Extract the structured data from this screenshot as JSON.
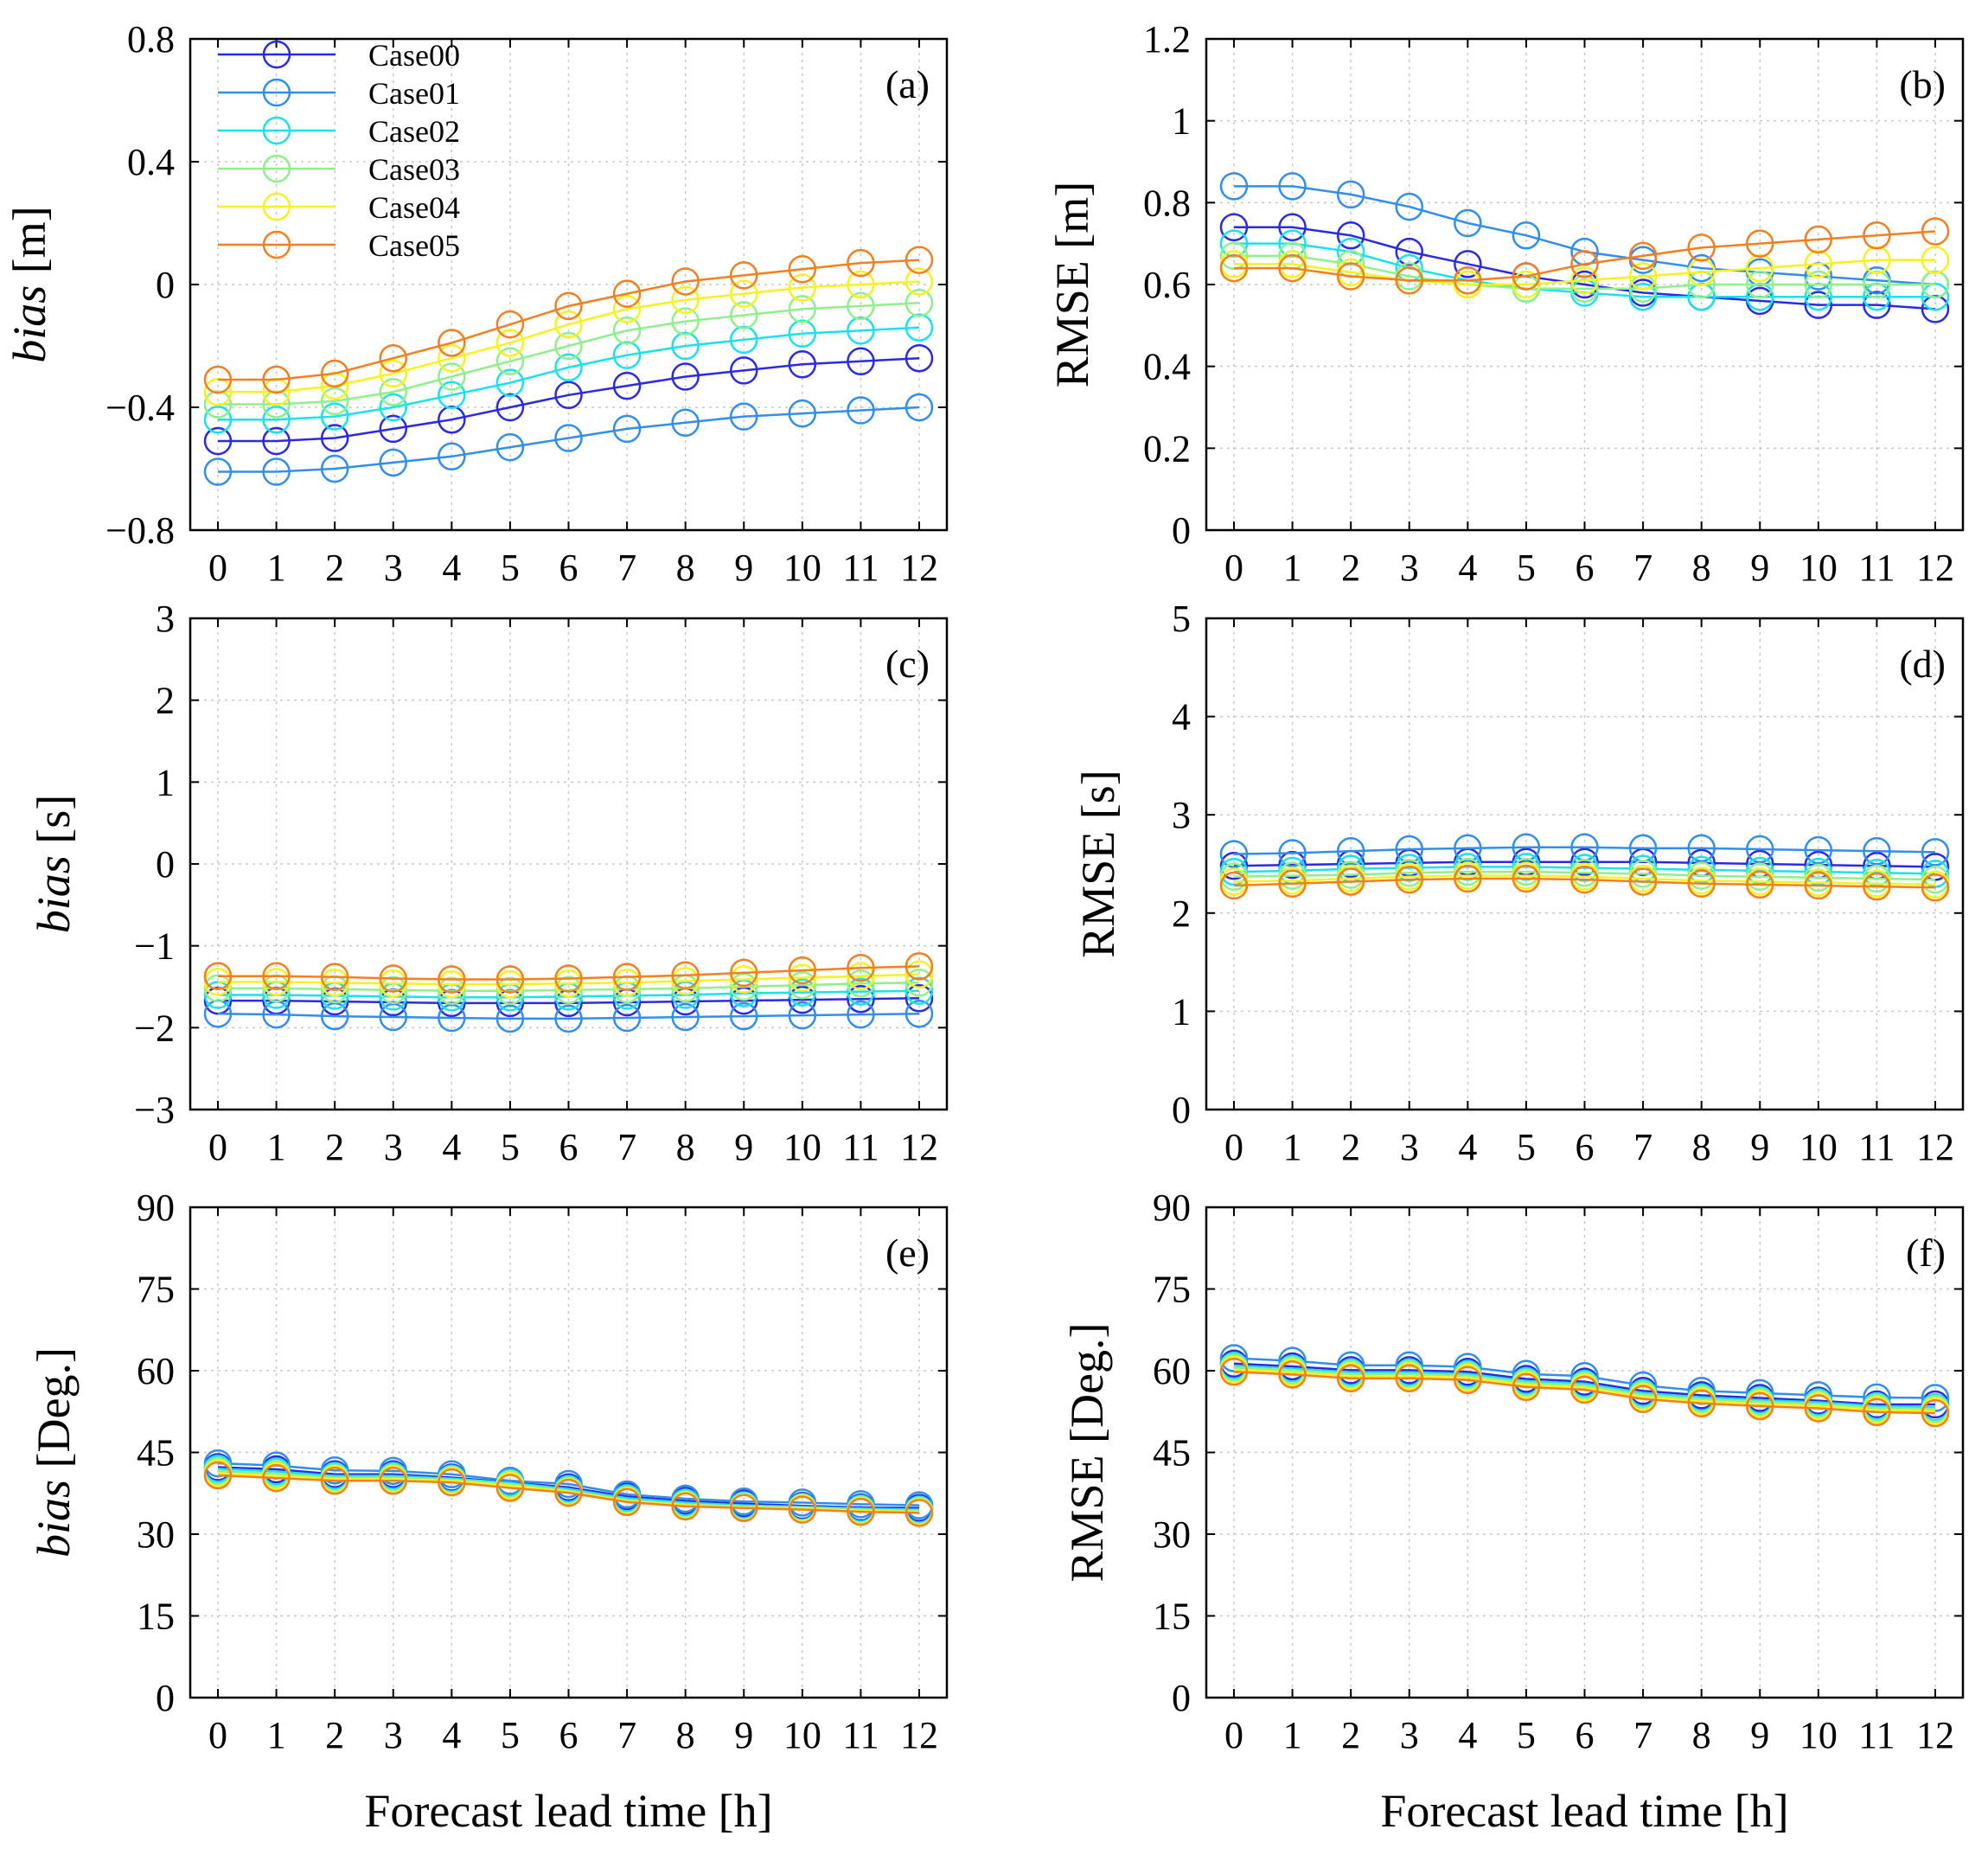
{
  "chart_data": [
    {
      "id": "a",
      "type": "line",
      "panel_label": "(a)",
      "ylabel_italic": "bias",
      "ylabel_rest": " [m]",
      "xlabel": "",
      "ylim": [
        -0.8,
        0.8
      ],
      "yticks": [
        -0.8,
        -0.4,
        0,
        0.4,
        0.8
      ],
      "ytick_labels": [
        "−0.8",
        "−0.4",
        "0",
        "0.4",
        "0.8"
      ],
      "x": [
        0,
        1,
        2,
        3,
        4,
        5,
        6,
        7,
        8,
        9,
        10,
        11,
        12
      ],
      "xtick_labels": [
        "0",
        "1",
        "2",
        "3",
        "4",
        "5",
        "6",
        "7",
        "8",
        "9",
        "10",
        "11",
        "12"
      ],
      "series": [
        {
          "name": "Case00",
          "values": [
            -0.51,
            -0.51,
            -0.5,
            -0.47,
            -0.44,
            -0.4,
            -0.36,
            -0.33,
            -0.3,
            -0.28,
            -0.26,
            -0.25,
            -0.24
          ]
        },
        {
          "name": "Case01",
          "values": [
            -0.61,
            -0.61,
            -0.6,
            -0.58,
            -0.56,
            -0.53,
            -0.5,
            -0.47,
            -0.45,
            -0.43,
            -0.42,
            -0.41,
            -0.4
          ]
        },
        {
          "name": "Case02",
          "values": [
            -0.44,
            -0.44,
            -0.43,
            -0.4,
            -0.36,
            -0.32,
            -0.27,
            -0.23,
            -0.2,
            -0.18,
            -0.16,
            -0.15,
            -0.14
          ]
        },
        {
          "name": "Case03",
          "values": [
            -0.39,
            -0.39,
            -0.38,
            -0.35,
            -0.3,
            -0.25,
            -0.2,
            -0.15,
            -0.12,
            -0.1,
            -0.08,
            -0.07,
            -0.06
          ]
        },
        {
          "name": "Case04",
          "values": [
            -0.35,
            -0.35,
            -0.33,
            -0.29,
            -0.24,
            -0.19,
            -0.13,
            -0.08,
            -0.05,
            -0.03,
            -0.01,
            0.0,
            0.01
          ]
        },
        {
          "name": "Case05",
          "values": [
            -0.31,
            -0.31,
            -0.29,
            -0.24,
            -0.19,
            -0.13,
            -0.07,
            -0.03,
            0.01,
            0.03,
            0.05,
            0.07,
            0.08
          ]
        }
      ],
      "legend": {
        "position": "top-left",
        "entries": [
          "Case00",
          "Case01",
          "Case02",
          "Case03",
          "Case04",
          "Case05"
        ]
      }
    },
    {
      "id": "b",
      "type": "line",
      "panel_label": "(b)",
      "ylabel_italic": "",
      "ylabel_rest": "RMSE [m]",
      "xlabel": "",
      "ylim": [
        0,
        1.2
      ],
      "yticks": [
        0,
        0.2,
        0.4,
        0.6,
        0.8,
        1,
        1.2
      ],
      "ytick_labels": [
        "0",
        "0.2",
        "0.4",
        "0.6",
        "0.8",
        "1",
        "1.2"
      ],
      "x": [
        0,
        1,
        2,
        3,
        4,
        5,
        6,
        7,
        8,
        9,
        10,
        11,
        12
      ],
      "xtick_labels": [
        "0",
        "1",
        "2",
        "3",
        "4",
        "5",
        "6",
        "7",
        "8",
        "9",
        "10",
        "11",
        "12"
      ],
      "series": [
        {
          "name": "Case00",
          "values": [
            0.74,
            0.74,
            0.72,
            0.68,
            0.65,
            0.62,
            0.6,
            0.58,
            0.57,
            0.56,
            0.55,
            0.55,
            0.54
          ]
        },
        {
          "name": "Case01",
          "values": [
            0.84,
            0.84,
            0.82,
            0.79,
            0.75,
            0.72,
            0.68,
            0.66,
            0.64,
            0.63,
            0.62,
            0.61,
            0.6
          ]
        },
        {
          "name": "Case02",
          "values": [
            0.7,
            0.7,
            0.68,
            0.64,
            0.61,
            0.59,
            0.58,
            0.57,
            0.57,
            0.57,
            0.57,
            0.57,
            0.57
          ]
        },
        {
          "name": "Case03",
          "values": [
            0.67,
            0.67,
            0.65,
            0.62,
            0.6,
            0.59,
            0.59,
            0.59,
            0.6,
            0.6,
            0.6,
            0.6,
            0.6
          ]
        },
        {
          "name": "Case04",
          "values": [
            0.65,
            0.65,
            0.63,
            0.61,
            0.6,
            0.6,
            0.61,
            0.62,
            0.63,
            0.64,
            0.65,
            0.66,
            0.66
          ]
        },
        {
          "name": "Case05",
          "values": [
            0.64,
            0.64,
            0.62,
            0.61,
            0.61,
            0.62,
            0.65,
            0.67,
            0.69,
            0.7,
            0.71,
            0.72,
            0.73
          ]
        }
      ]
    },
    {
      "id": "c",
      "type": "line",
      "panel_label": "(c)",
      "ylabel_italic": "bias",
      "ylabel_rest": " [s]",
      "xlabel": "",
      "ylim": [
        -3,
        3
      ],
      "yticks": [
        -3,
        -2,
        -1,
        0,
        1,
        2,
        3
      ],
      "ytick_labels": [
        "−3",
        "−2",
        "−1",
        "0",
        "1",
        "2",
        "3"
      ],
      "x": [
        0,
        1,
        2,
        3,
        4,
        5,
        6,
        7,
        8,
        9,
        10,
        11,
        12
      ],
      "xtick_labels": [
        "0",
        "1",
        "2",
        "3",
        "4",
        "5",
        "6",
        "7",
        "8",
        "9",
        "10",
        "11",
        "12"
      ],
      "series": [
        {
          "name": "Case00",
          "values": [
            -1.67,
            -1.67,
            -1.68,
            -1.69,
            -1.7,
            -1.7,
            -1.7,
            -1.69,
            -1.68,
            -1.67,
            -1.66,
            -1.65,
            -1.64
          ]
        },
        {
          "name": "Case01",
          "values": [
            -1.83,
            -1.84,
            -1.86,
            -1.87,
            -1.88,
            -1.89,
            -1.89,
            -1.88,
            -1.87,
            -1.86,
            -1.85,
            -1.84,
            -1.83
          ]
        },
        {
          "name": "Case02",
          "values": [
            -1.6,
            -1.6,
            -1.61,
            -1.62,
            -1.63,
            -1.63,
            -1.62,
            -1.61,
            -1.6,
            -1.58,
            -1.57,
            -1.56,
            -1.55
          ]
        },
        {
          "name": "Case03",
          "values": [
            -1.52,
            -1.52,
            -1.53,
            -1.54,
            -1.55,
            -1.55,
            -1.54,
            -1.53,
            -1.52,
            -1.5,
            -1.48,
            -1.46,
            -1.45
          ]
        },
        {
          "name": "Case04",
          "values": [
            -1.44,
            -1.44,
            -1.45,
            -1.46,
            -1.47,
            -1.47,
            -1.46,
            -1.45,
            -1.43,
            -1.41,
            -1.39,
            -1.37,
            -1.35
          ]
        },
        {
          "name": "Case05",
          "values": [
            -1.37,
            -1.37,
            -1.38,
            -1.4,
            -1.41,
            -1.41,
            -1.4,
            -1.38,
            -1.36,
            -1.33,
            -1.3,
            -1.27,
            -1.25
          ]
        }
      ]
    },
    {
      "id": "d",
      "type": "line",
      "panel_label": "(d)",
      "ylabel_italic": "",
      "ylabel_rest": "RMSE [s]",
      "xlabel": "",
      "ylim": [
        0,
        5
      ],
      "yticks": [
        0,
        1,
        2,
        3,
        4,
        5
      ],
      "ytick_labels": [
        "0",
        "1",
        "2",
        "3",
        "4",
        "5"
      ],
      "x": [
        0,
        1,
        2,
        3,
        4,
        5,
        6,
        7,
        8,
        9,
        10,
        11,
        12
      ],
      "xtick_labels": [
        "0",
        "1",
        "2",
        "3",
        "4",
        "5",
        "6",
        "7",
        "8",
        "9",
        "10",
        "11",
        "12"
      ],
      "series": [
        {
          "name": "Case00",
          "values": [
            2.48,
            2.49,
            2.5,
            2.51,
            2.52,
            2.52,
            2.52,
            2.52,
            2.51,
            2.5,
            2.49,
            2.48,
            2.47
          ]
        },
        {
          "name": "Case01",
          "values": [
            2.6,
            2.61,
            2.63,
            2.65,
            2.66,
            2.67,
            2.67,
            2.66,
            2.66,
            2.65,
            2.64,
            2.63,
            2.62
          ]
        },
        {
          "name": "Case02",
          "values": [
            2.42,
            2.43,
            2.45,
            2.46,
            2.47,
            2.47,
            2.46,
            2.45,
            2.44,
            2.43,
            2.42,
            2.41,
            2.4
          ]
        },
        {
          "name": "Case03",
          "values": [
            2.37,
            2.38,
            2.39,
            2.41,
            2.42,
            2.42,
            2.41,
            2.4,
            2.38,
            2.37,
            2.36,
            2.35,
            2.34
          ]
        },
        {
          "name": "Case04",
          "values": [
            2.32,
            2.33,
            2.35,
            2.37,
            2.38,
            2.38,
            2.37,
            2.35,
            2.33,
            2.32,
            2.31,
            2.3,
            2.29
          ]
        },
        {
          "name": "Case05",
          "values": [
            2.28,
            2.3,
            2.32,
            2.34,
            2.35,
            2.35,
            2.34,
            2.32,
            2.3,
            2.29,
            2.28,
            2.27,
            2.26
          ]
        }
      ]
    },
    {
      "id": "e",
      "type": "line",
      "panel_label": "(e)",
      "ylabel_italic": "bias",
      "ylabel_rest": " [Deg.]",
      "xlabel": "Forecast lead time [h]",
      "ylim": [
        0,
        90
      ],
      "yticks": [
        0,
        15,
        30,
        45,
        60,
        75,
        90
      ],
      "ytick_labels": [
        "0",
        "15",
        "30",
        "45",
        "60",
        "75",
        "90"
      ],
      "x": [
        0,
        1,
        2,
        3,
        4,
        5,
        6,
        7,
        8,
        9,
        10,
        11,
        12
      ],
      "xtick_labels": [
        "0",
        "1",
        "2",
        "3",
        "4",
        "5",
        "6",
        "7",
        "8",
        "9",
        "10",
        "11",
        "12"
      ],
      "series": [
        {
          "name": "Case00",
          "values": [
            42.3,
            41.9,
            41.0,
            41.0,
            40.4,
            39.5,
            38.6,
            36.9,
            36.1,
            35.6,
            35.2,
            34.9,
            34.8
          ]
        },
        {
          "name": "Case01",
          "values": [
            43.0,
            42.6,
            41.7,
            41.6,
            41.0,
            39.8,
            39.2,
            37.3,
            36.5,
            36.0,
            35.8,
            35.5,
            35.3
          ]
        },
        {
          "name": "Case02",
          "values": [
            42.0,
            41.5,
            40.7,
            40.7,
            40.2,
            39.4,
            38.3,
            36.6,
            35.8,
            35.3,
            35.0,
            34.7,
            34.5
          ]
        },
        {
          "name": "Case03",
          "values": [
            41.6,
            41.1,
            40.4,
            40.4,
            40.0,
            39.2,
            38.0,
            36.3,
            35.5,
            35.1,
            34.9,
            34.5,
            34.3
          ]
        },
        {
          "name": "Case04",
          "values": [
            41.2,
            40.7,
            40.1,
            40.1,
            39.8,
            38.9,
            37.8,
            36.1,
            35.3,
            34.9,
            34.7,
            34.3,
            34.1
          ]
        },
        {
          "name": "Case05",
          "values": [
            40.8,
            40.3,
            39.8,
            39.8,
            39.5,
            38.5,
            37.6,
            35.9,
            35.1,
            34.8,
            34.5,
            34.1,
            33.9
          ]
        }
      ]
    },
    {
      "id": "f",
      "type": "line",
      "panel_label": "(f)",
      "ylabel_italic": "",
      "ylabel_rest": "RMSE [Deg.]",
      "xlabel": "Forecast lead time [h]",
      "ylim": [
        0,
        90
      ],
      "yticks": [
        0,
        15,
        30,
        45,
        60,
        75,
        90
      ],
      "ytick_labels": [
        "0",
        "15",
        "30",
        "45",
        "60",
        "75",
        "90"
      ],
      "x": [
        0,
        1,
        2,
        3,
        4,
        5,
        6,
        7,
        8,
        9,
        10,
        11,
        12
      ],
      "xtick_labels": [
        "0",
        "1",
        "2",
        "3",
        "4",
        "5",
        "6",
        "7",
        "8",
        "9",
        "10",
        "11",
        "12"
      ],
      "series": [
        {
          "name": "Case00",
          "values": [
            61.3,
            60.8,
            60.1,
            60.1,
            59.8,
            58.5,
            58.0,
            56.3,
            55.5,
            55.0,
            54.5,
            53.8,
            53.8
          ]
        },
        {
          "name": "Case01",
          "values": [
            62.3,
            61.8,
            61.0,
            61.0,
            60.7,
            59.4,
            59.0,
            57.3,
            56.3,
            55.9,
            55.5,
            55.1,
            55.0
          ]
        },
        {
          "name": "Case02",
          "values": [
            60.9,
            60.4,
            59.7,
            59.7,
            59.4,
            58.1,
            57.6,
            55.9,
            55.1,
            54.6,
            54.2,
            53.5,
            53.3
          ]
        },
        {
          "name": "Case03",
          "values": [
            60.6,
            60.1,
            59.4,
            59.4,
            59.1,
            57.8,
            57.3,
            55.6,
            54.8,
            54.3,
            53.9,
            53.2,
            53.0
          ]
        },
        {
          "name": "Case04",
          "values": [
            60.2,
            59.7,
            59.0,
            59.0,
            58.7,
            57.4,
            56.9,
            55.2,
            54.4,
            53.9,
            53.5,
            52.8,
            52.6
          ]
        },
        {
          "name": "Case05",
          "values": [
            59.8,
            59.3,
            58.6,
            58.6,
            58.3,
            57.0,
            56.5,
            54.8,
            54.0,
            53.5,
            53.1,
            52.4,
            52.2
          ]
        }
      ]
    }
  ],
  "series_colors": {
    "Case00": "#2a2ae6",
    "Case01": "#2f8ef0",
    "Case02": "#18e2ee",
    "Case03": "#8ff08a",
    "Case04": "#f5f21c",
    "Case05": "#f57f1f"
  }
}
